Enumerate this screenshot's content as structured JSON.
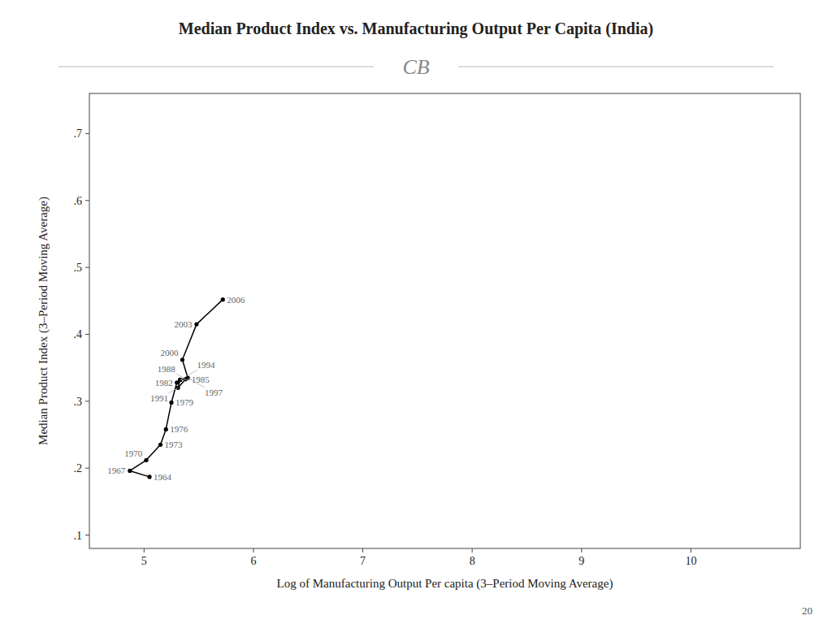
{
  "chart_data": {
    "type": "line",
    "title": "Median Product Index vs. Manufacturing Output Per Capita (India)",
    "x_label": "Log of Manufacturing Output Per capita (3–Period Moving Average)",
    "y_label": "Median Product Index (3–Period Moving Average)",
    "x": [
      5.05,
      4.87,
      5.02,
      5.15,
      5.2,
      5.25,
      5.3,
      5.33,
      5.38,
      5.31,
      5.33,
      5.4,
      5.35,
      5.48,
      5.72
    ],
    "values": [
      0.187,
      0.196,
      0.212,
      0.235,
      0.258,
      0.298,
      0.328,
      0.332,
      0.333,
      0.32,
      0.332,
      0.335,
      0.362,
      0.415,
      0.452
    ],
    "color": "#000000",
    "marker": "circle",
    "xlim": [
      4.5,
      11.0
    ],
    "ylim": [
      0.08,
      0.76
    ],
    "xticks": [
      5,
      6,
      7,
      8,
      9,
      10
    ],
    "yticks": [
      {
        "value": 0.1,
        "label": ".1"
      },
      {
        "value": 0.2,
        "label": ".2"
      },
      {
        "value": 0.3,
        "label": ".3"
      },
      {
        "value": 0.4,
        "label": ".4"
      },
      {
        "value": 0.5,
        "label": ".5"
      },
      {
        "value": 0.6,
        "label": ".6"
      },
      {
        "value": 0.7,
        "label": ".7"
      }
    ],
    "grid": false,
    "annotations": [
      {
        "text": "1964",
        "x": 5.05,
        "y": 0.187
      },
      {
        "text": "1967",
        "x": 4.87,
        "y": 0.196
      },
      {
        "text": "1970",
        "x": 5.02,
        "y": 0.212
      },
      {
        "text": "1973",
        "x": 5.15,
        "y": 0.235
      },
      {
        "text": "1976",
        "x": 5.2,
        "y": 0.258
      },
      {
        "text": "1979",
        "x": 5.25,
        "y": 0.298
      },
      {
        "text": "1982",
        "x": 5.3,
        "y": 0.328
      },
      {
        "text": "1985",
        "x": 5.33,
        "y": 0.332
      },
      {
        "text": "1988",
        "x": 5.38,
        "y": 0.333
      },
      {
        "text": "1991",
        "x": 5.31,
        "y": 0.32
      },
      {
        "text": "1994",
        "x": 5.33,
        "y": 0.332
      },
      {
        "text": "1997",
        "x": 5.4,
        "y": 0.335
      },
      {
        "text": "2000",
        "x": 5.35,
        "y": 0.362
      },
      {
        "text": "2003",
        "x": 5.48,
        "y": 0.415
      },
      {
        "text": "2006",
        "x": 5.72,
        "y": 0.452
      },
      {
        "text": "CB"
      },
      {
        "text": "20"
      }
    ]
  }
}
